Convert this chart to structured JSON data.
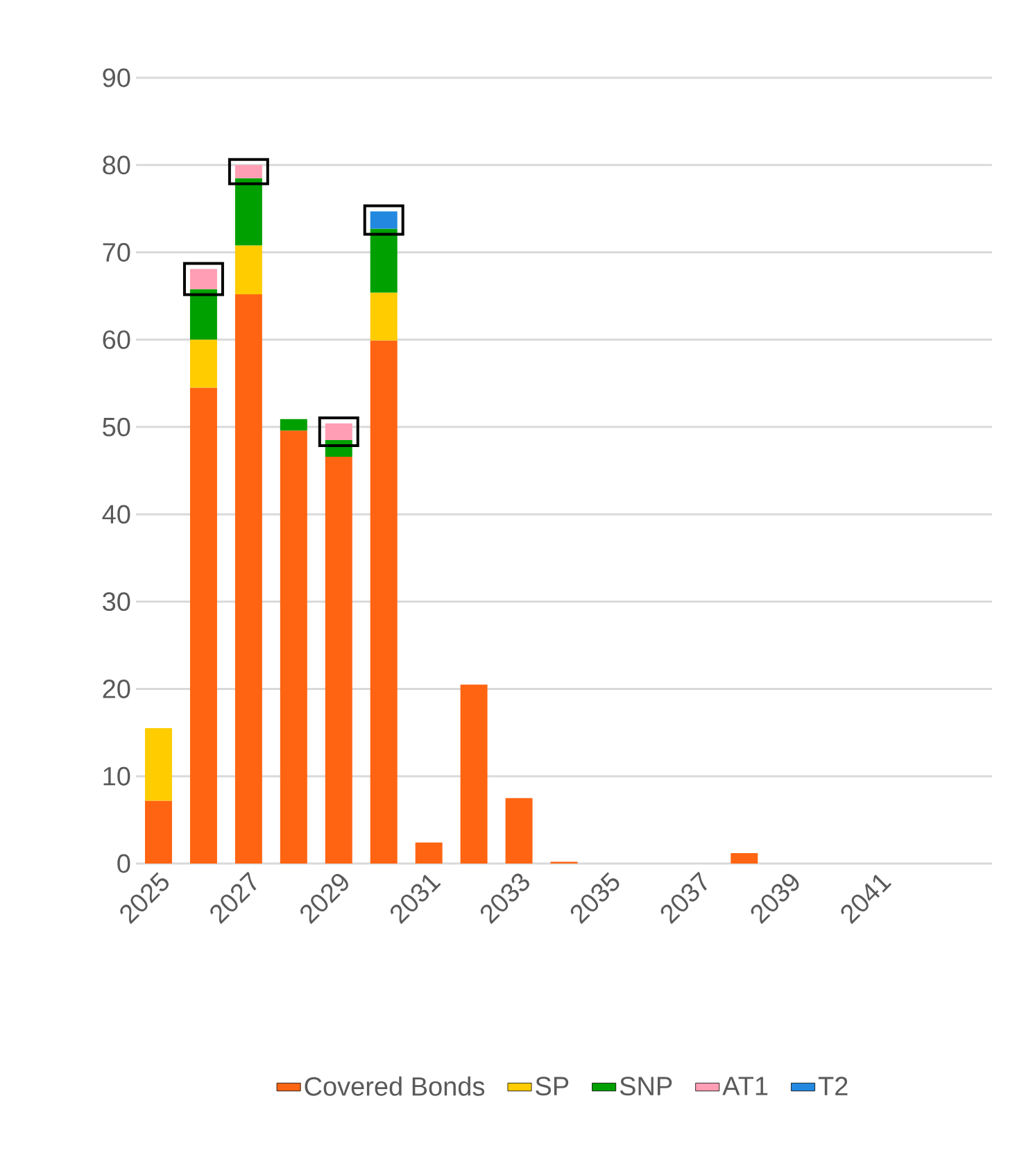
{
  "chart_data": {
    "type": "bar",
    "stacked": true,
    "categories": [
      "2025",
      null,
      "2027",
      null,
      "2029",
      null,
      "2031",
      null,
      "2033",
      null,
      "2035",
      null,
      "2037",
      null,
      "2039",
      null,
      "2041",
      null
    ],
    "series": [
      {
        "name": "Covered Bonds",
        "color": "#ff6412",
        "values": [
          7.2,
          54.5,
          65.2,
          49.6,
          46.6,
          59.9,
          2.4,
          20.5,
          7.5,
          0.2,
          null,
          null,
          null,
          1.2,
          null,
          null,
          null,
          null
        ]
      },
      {
        "name": "SP",
        "color": "#ffcc00",
        "values": [
          8.3,
          5.5,
          5.6,
          null,
          null,
          5.5,
          null,
          null,
          null,
          null,
          null,
          null,
          null,
          null,
          null,
          null,
          null,
          null
        ]
      },
      {
        "name": "SNP",
        "color": "#00a000",
        "values": [
          null,
          5.8,
          7.7,
          1.3,
          1.9,
          7.3,
          null,
          null,
          null,
          null,
          null,
          null,
          null,
          null,
          null,
          null,
          null,
          null
        ]
      },
      {
        "name": "AT1",
        "color": "#ff9eb4",
        "values": [
          null,
          2.3,
          1.5,
          null,
          1.9,
          null,
          null,
          null,
          null,
          null,
          null,
          null,
          null,
          null,
          null,
          null,
          null,
          null
        ]
      },
      {
        "name": "T2",
        "color": "#2389e0",
        "values": [
          null,
          null,
          null,
          null,
          null,
          2.0,
          null,
          null,
          null,
          null,
          null,
          null,
          null,
          null,
          null,
          null,
          null,
          null
        ]
      }
    ],
    "ylim": [
      0,
      90
    ],
    "yticks": [
      0,
      10,
      20,
      30,
      40,
      50,
      60,
      70,
      80,
      90
    ],
    "grid": "y",
    "legend": "bottom"
  }
}
